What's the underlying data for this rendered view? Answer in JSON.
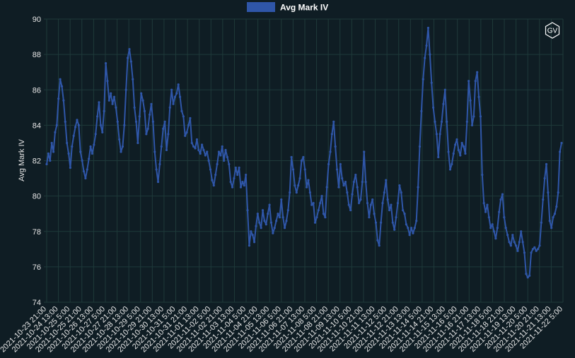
{
  "chart_data": {
    "type": "line",
    "title": "",
    "xlabel": "",
    "ylabel": "Avg Mark IV",
    "ylim": [
      74,
      90
    ],
    "yticks": [
      74,
      76,
      78,
      80,
      82,
      84,
      86,
      88,
      90
    ],
    "grid": true,
    "legend_position": "top-center",
    "series": [
      {
        "name": "Avg Mark IV",
        "color": "#2f56a8",
        "values": [
          81.8,
          82.4,
          82.0,
          83.0,
          82.5,
          83.6,
          84.0,
          85.5,
          86.6,
          86.2,
          85.4,
          84.2,
          83.0,
          82.4,
          81.6,
          82.8,
          83.4,
          83.9,
          84.3,
          84.0,
          82.5,
          82.0,
          81.4,
          81.0,
          81.5,
          82.1,
          82.8,
          82.4,
          82.9,
          83.5,
          84.5,
          85.3,
          84.0,
          83.6,
          84.8,
          87.5,
          86.5,
          85.4,
          85.8,
          85.2,
          85.6,
          85.0,
          84.2,
          83.2,
          82.5,
          82.8,
          84.0,
          86.0,
          87.8,
          88.3,
          87.6,
          86.6,
          85.0,
          84.2,
          83.0,
          84.5,
          85.8,
          85.4,
          84.8,
          83.5,
          83.8,
          84.6,
          85.2,
          84.2,
          82.5,
          81.5,
          80.8,
          81.8,
          82.8,
          83.8,
          84.2,
          82.6,
          83.5,
          85.0,
          86.0,
          85.2,
          85.6,
          85.8,
          86.3,
          85.6,
          84.8,
          84.5,
          83.4,
          83.6,
          84.0,
          84.4,
          83.0,
          82.8,
          82.7,
          83.2,
          82.6,
          82.4,
          82.9,
          82.6,
          82.3,
          82.5,
          82.0,
          81.5,
          80.9,
          80.6,
          81.2,
          81.8,
          82.5,
          82.3,
          82.8,
          82.0,
          82.6,
          82.2,
          81.8,
          80.8,
          80.5,
          81.0,
          81.6,
          81.2,
          81.6,
          80.5,
          80.8,
          80.6,
          81.2,
          79.2,
          77.2,
          78.0,
          77.8,
          77.4,
          78.3,
          79.0,
          78.5,
          78.2,
          79.2,
          78.6,
          78.4,
          79.0,
          79.5,
          78.5,
          77.9,
          78.2,
          78.6,
          79.0,
          78.8,
          79.8,
          78.8,
          78.2,
          78.6,
          79.2,
          80.2,
          82.2,
          81.5,
          80.6,
          80.2,
          80.6,
          81.0,
          82.0,
          82.2,
          81.5,
          80.5,
          80.9,
          80.2,
          79.5,
          79.6,
          78.5,
          78.8,
          79.2,
          79.6,
          80.0,
          79.0,
          78.8,
          80.5,
          81.8,
          82.5,
          83.5,
          84.2,
          82.8,
          81.5,
          80.5,
          81.8,
          81.0,
          80.6,
          80.8,
          80.2,
          79.5,
          79.2,
          80.1,
          80.8,
          81.2,
          80.5,
          79.6,
          79.8,
          80.8,
          82.5,
          80.8,
          79.6,
          78.8,
          79.5,
          79.8,
          79.0,
          78.5,
          77.5,
          77.2,
          78.5,
          79.6,
          80.2,
          80.9,
          79.8,
          79.2,
          79.5,
          78.5,
          78.1,
          78.8,
          79.6,
          80.6,
          80.2,
          79.2,
          79.0,
          78.4,
          78.2,
          77.8,
          78.2,
          77.9,
          78.2,
          78.6,
          80.5,
          82.8,
          84.8,
          86.6,
          87.8,
          88.5,
          89.5,
          88.0,
          86.4,
          85.0,
          84.2,
          83.5,
          82.2,
          83.5,
          84.2,
          85.2,
          86.0,
          84.2,
          82.5,
          81.5,
          81.8,
          82.4,
          82.9,
          83.2,
          82.6,
          82.3,
          83.0,
          82.8,
          82.4,
          84.2,
          86.5,
          85.4,
          84.0,
          84.5,
          86.5,
          87.0,
          85.6,
          84.5,
          81.2,
          79.6,
          79.1,
          79.5,
          78.8,
          78.2,
          78.4,
          78.0,
          77.6,
          78.2,
          79.1,
          79.8,
          80.1,
          78.8,
          78.2,
          77.8,
          77.4,
          77.2,
          77.8,
          77.4,
          77.2,
          76.9,
          77.4,
          78.0,
          77.4,
          76.8,
          75.6,
          75.4,
          75.5,
          76.8,
          77.0,
          77.1,
          76.9,
          77.0,
          77.2,
          78.5,
          79.8,
          81.0,
          81.8,
          80.2,
          78.6,
          78.2,
          78.8,
          79.0,
          79.4,
          80.2,
          82.5,
          83.0
        ]
      }
    ],
    "x_tick_labels": [
      "2021-10-23 21:00",
      "2021-10-24 13:00",
      "2021-10-25 5:00",
      "2021-10-25 21:00",
      "2021-10-26 13:00",
      "2021-10-27 5:00",
      "2021-10-27 21:00",
      "2021-10-28 13:00",
      "2021-10-29 5:00",
      "2021-10-29 21:00",
      "2021-10-30 13:00",
      "2021-10-31 5:00",
      "2021-10-31 21:00",
      "2021-11-01 13:00",
      "2021-11-02 5:00",
      "2021-11-02 21:00",
      "2021-11-03 13:00",
      "2021-11-04 5:00",
      "2021-11-04 21:00",
      "2021-11-05 13:00",
      "2021-11-06 5:00",
      "2021-11-06 21:00",
      "2021-11-07 13:00",
      "2021-11-08 5:00",
      "2021-11-08 21:00",
      "2021-11-09 13:00",
      "2021-11-10 5:00",
      "2021-11-10 21:00",
      "2021-11-11 13:00",
      "2021-11-12 5:00",
      "2021-11-12 21:00",
      "2021-11-13 13:00",
      "2021-11-14 5:00",
      "2021-11-14 21:00",
      "2021-11-15 13:00",
      "2021-11-16 5:00",
      "2021-11-16 21:00",
      "2021-11-17 13:00",
      "2021-11-18 5:00",
      "2021-11-18 21:00",
      "2021-11-19 13:00",
      "2021-11-20 5:00",
      "2021-11-20 21:00",
      "2021-11-21 13:00",
      "2021-11-22 5:00"
    ]
  },
  "logo": {
    "text": "GV"
  }
}
